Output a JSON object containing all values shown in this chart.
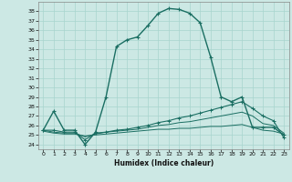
{
  "xlabel": "Humidex (Indice chaleur)",
  "x_ticks": [
    0,
    1,
    2,
    3,
    4,
    5,
    6,
    7,
    8,
    9,
    10,
    11,
    12,
    13,
    14,
    15,
    16,
    17,
    18,
    19,
    20,
    21,
    22,
    23
  ],
  "y_ticks": [
    24,
    25,
    26,
    27,
    28,
    29,
    30,
    31,
    32,
    33,
    34,
    35,
    36,
    37,
    38
  ],
  "xlim": [
    -0.5,
    23.5
  ],
  "ylim": [
    23.5,
    39.0
  ],
  "background_color": "#cce8e4",
  "line_color": "#1a6e62",
  "grid_color": "#a8d4ce",
  "series": {
    "main": {
      "x": [
        0,
        1,
        2,
        3,
        4,
        5,
        6,
        7,
        8,
        9,
        10,
        11,
        12,
        13,
        14,
        15,
        16,
        17,
        18,
        19,
        20,
        21,
        22,
        23
      ],
      "y": [
        25.5,
        27.5,
        25.5,
        25.5,
        24.0,
        25.3,
        29.0,
        34.3,
        35.0,
        35.3,
        36.5,
        37.8,
        38.3,
        38.2,
        37.8,
        36.8,
        33.2,
        29.0,
        28.5,
        29.0,
        25.8,
        25.8,
        25.8,
        25.0
      ]
    },
    "line2": {
      "x": [
        0,
        1,
        2,
        3,
        4,
        5,
        6,
        7,
        8,
        9,
        10,
        11,
        12,
        13,
        14,
        15,
        16,
        17,
        18,
        19,
        20,
        21,
        22,
        23
      ],
      "y": [
        25.5,
        25.5,
        25.3,
        25.3,
        24.5,
        25.2,
        25.3,
        25.5,
        25.6,
        25.8,
        26.0,
        26.3,
        26.5,
        26.8,
        27.0,
        27.3,
        27.6,
        27.9,
        28.2,
        28.5,
        27.8,
        27.0,
        26.5,
        24.7
      ]
    },
    "line3": {
      "x": [
        0,
        1,
        2,
        3,
        4,
        5,
        6,
        7,
        8,
        9,
        10,
        11,
        12,
        13,
        14,
        15,
        16,
        17,
        18,
        19,
        20,
        21,
        22,
        23
      ],
      "y": [
        25.5,
        25.3,
        25.2,
        25.2,
        24.8,
        25.1,
        25.3,
        25.4,
        25.5,
        25.6,
        25.8,
        26.0,
        26.1,
        26.3,
        26.4,
        26.6,
        26.8,
        27.0,
        27.2,
        27.4,
        27.0,
        26.2,
        26.0,
        25.2
      ]
    },
    "line4": {
      "x": [
        0,
        1,
        2,
        3,
        4,
        5,
        6,
        7,
        8,
        9,
        10,
        11,
        12,
        13,
        14,
        15,
        16,
        17,
        18,
        19,
        20,
        21,
        22,
        23
      ],
      "y": [
        25.4,
        25.2,
        25.1,
        25.1,
        24.9,
        25.0,
        25.1,
        25.2,
        25.3,
        25.4,
        25.5,
        25.6,
        25.6,
        25.7,
        25.7,
        25.8,
        25.9,
        25.9,
        26.0,
        26.1,
        25.8,
        25.5,
        25.4,
        25.1
      ]
    }
  }
}
